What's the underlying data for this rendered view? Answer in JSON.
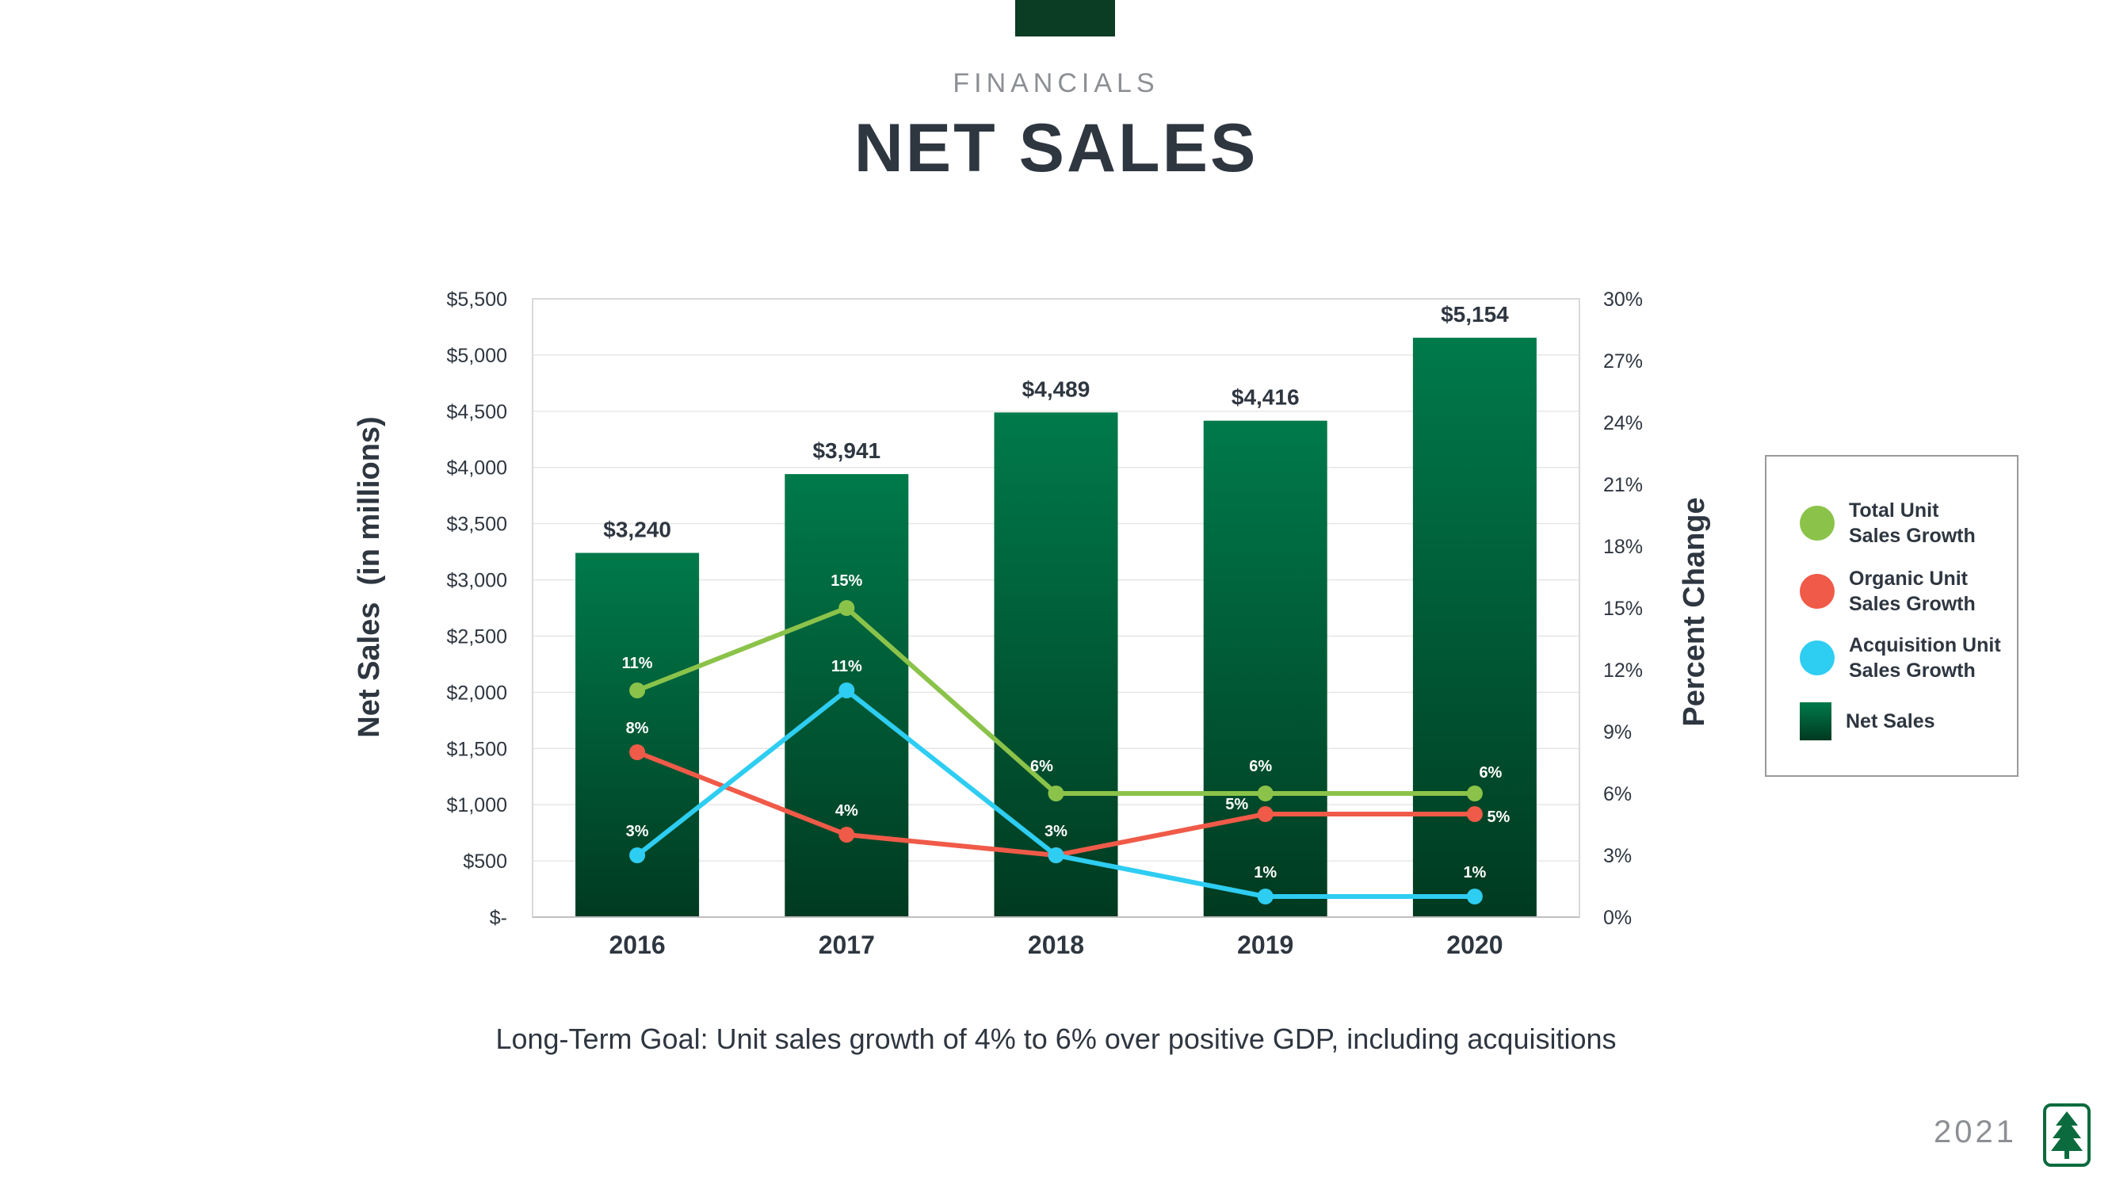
{
  "header": {
    "eyebrow": "FINANCIALS",
    "title": "NET SALES"
  },
  "chart_data": {
    "type": "bar",
    "categories": [
      "2016",
      "2017",
      "2018",
      "2019",
      "2020"
    ],
    "bar_series": {
      "name": "Net Sales",
      "values": [
        3240,
        3941,
        4489,
        4416,
        5154
      ],
      "labels": [
        "$3,240",
        "$3,941",
        "$4,489",
        "$4,416",
        "$5,154"
      ]
    },
    "line_series": [
      {
        "name": "Total Unit Sales Growth",
        "color": "#8bc34a",
        "values": [
          11,
          15,
          6,
          6,
          6
        ],
        "labels": [
          "11%",
          "15%",
          "6%",
          "6%",
          "6%"
        ]
      },
      {
        "name": "Organic Unit Sales Growth",
        "color": "#f05a48",
        "values": [
          8,
          4,
          3,
          5,
          5
        ],
        "labels": [
          "8%",
          "4%",
          "",
          "5%",
          "5%"
        ]
      },
      {
        "name": "Acquisition Unit Sales Growth",
        "color": "#2ecdf2",
        "values": [
          3,
          11,
          3,
          1,
          1
        ],
        "labels": [
          "3%",
          "11%",
          "3%",
          "1%",
          "1%"
        ]
      }
    ],
    "y_left": {
      "label": "Net Sales  (in millions)",
      "range": [
        0,
        5500
      ],
      "ticks": [
        "$-",
        "$500",
        "$1,000",
        "$1,500",
        "$2,000",
        "$2,500",
        "$3,000",
        "$3,500",
        "$4,000",
        "$4,500",
        "$5,000",
        "$5,500"
      ]
    },
    "y_right": {
      "label": "Percent Change",
      "range": [
        0,
        30
      ],
      "ticks": [
        "0%",
        "3%",
        "6%",
        "9%",
        "12%",
        "15%",
        "18%",
        "21%",
        "24%",
        "27%",
        "30%"
      ]
    },
    "grid": true,
    "legend_position": "right"
  },
  "legend": {
    "items": [
      {
        "label_line1": "Total Unit",
        "label_line2": "Sales Growth",
        "color": "#8bc34a"
      },
      {
        "label_line1": "Organic Unit",
        "label_line2": "Sales Growth",
        "color": "#f05a48"
      },
      {
        "label_line1": "Acquisition Unit",
        "label_line2": "Sales Growth",
        "color": "#2ecdf2"
      },
      {
        "label_line1": "Net Sales",
        "label_line2": ""
      }
    ]
  },
  "footer": {
    "goal": "Long-Term Goal: Unit sales growth of 4% to 6% over positive GDP, including acquisitions",
    "year": "2021"
  },
  "colors": {
    "bar_top": "#007a4a",
    "bar_bottom": "#003a20",
    "text_dark": "#2e3640",
    "brand": "#0b3d24"
  }
}
